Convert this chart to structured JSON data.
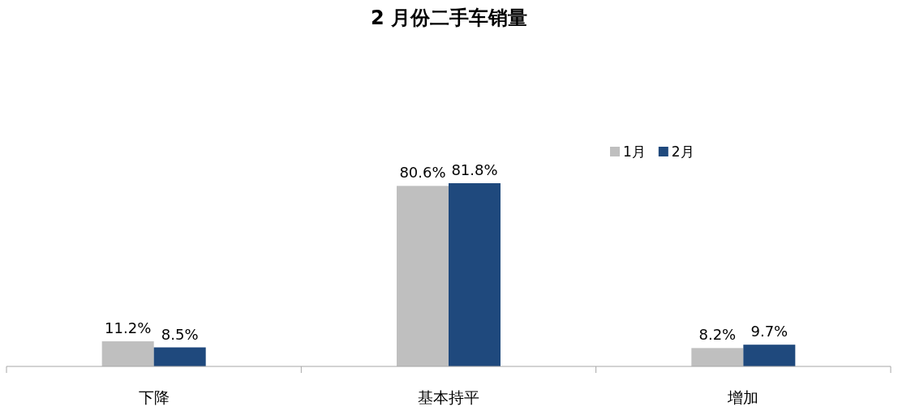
{
  "chart_data": {
    "type": "bar",
    "title": "2 月份二手车销量",
    "categories": [
      "下降",
      "基本持平",
      "增加"
    ],
    "legend": "top right",
    "series": [
      {
        "name": "1月",
        "color": "#bfbfbf",
        "values": [
          11.2,
          80.6,
          8.2
        ],
        "value_labels": [
          "11.2%",
          "80.6%",
          "8.2%"
        ]
      },
      {
        "name": "2月",
        "color": "#1f497d",
        "values": [
          8.5,
          81.8,
          9.7
        ],
        "value_labels": [
          "8.5%",
          "81.8%",
          "9.7%"
        ]
      }
    ]
  }
}
